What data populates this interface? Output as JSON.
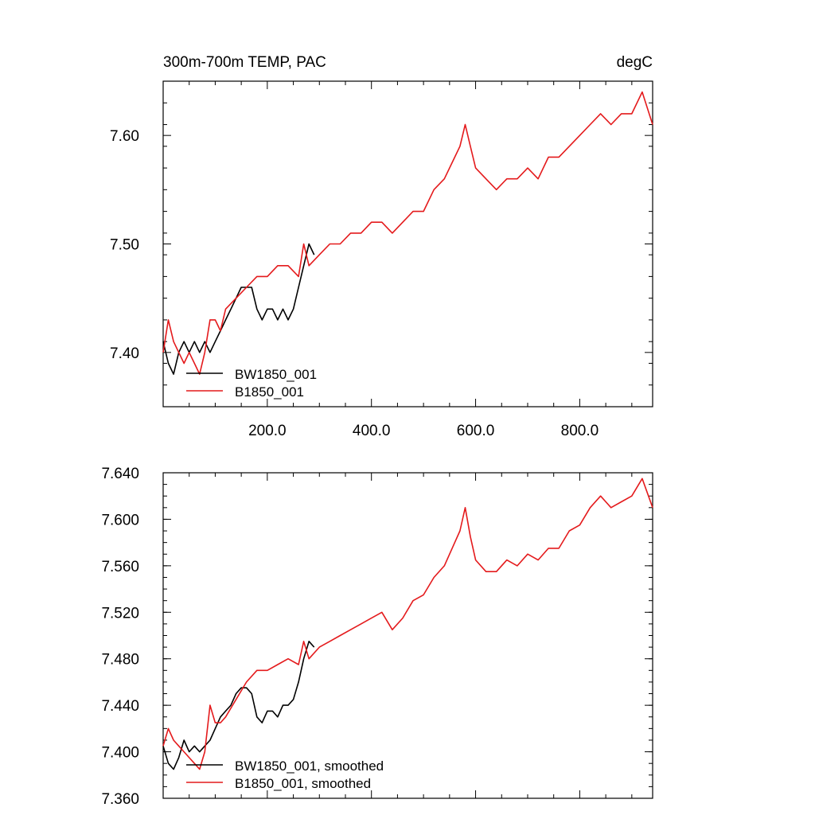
{
  "chart_data": [
    {
      "type": "line",
      "title": "300m-700m TEMP, PAC",
      "units": "degC",
      "xlim": [
        0,
        940
      ],
      "ylim": [
        7.35,
        7.65
      ],
      "x_tick_labels": [
        "200.0",
        "400.0",
        "600.0",
        "800.0"
      ],
      "x_tick_values": [
        200,
        400,
        600,
        800
      ],
      "y_tick_labels": [
        "7.40",
        "7.50",
        "7.60"
      ],
      "y_tick_values": [
        7.4,
        7.5,
        7.6
      ],
      "legend_position": "bottom-left",
      "series": [
        {
          "name": "BW1850_001",
          "color": "#000000",
          "x": [
            0,
            10,
            20,
            30,
            40,
            50,
            60,
            70,
            80,
            90,
            100,
            110,
            120,
            130,
            140,
            150,
            160,
            170,
            180,
            190,
            200,
            210,
            220,
            230,
            240,
            250,
            260,
            270,
            280,
            290
          ],
          "y": [
            7.41,
            7.39,
            7.38,
            7.4,
            7.41,
            7.4,
            7.41,
            7.4,
            7.41,
            7.4,
            7.41,
            7.42,
            7.43,
            7.44,
            7.45,
            7.46,
            7.46,
            7.46,
            7.44,
            7.43,
            7.44,
            7.44,
            7.43,
            7.44,
            7.43,
            7.44,
            7.46,
            7.48,
            7.5,
            7.49
          ]
        },
        {
          "name": "B1850_001",
          "color": "#e41a1c",
          "x": [
            0,
            10,
            20,
            30,
            40,
            50,
            60,
            70,
            80,
            90,
            100,
            110,
            120,
            140,
            160,
            180,
            200,
            220,
            240,
            260,
            270,
            280,
            300,
            320,
            340,
            360,
            380,
            400,
            420,
            440,
            460,
            480,
            500,
            520,
            540,
            560,
            570,
            580,
            590,
            600,
            620,
            640,
            660,
            680,
            700,
            720,
            740,
            760,
            780,
            800,
            820,
            840,
            860,
            880,
            900,
            920,
            940
          ],
          "y": [
            7.4,
            7.43,
            7.41,
            7.4,
            7.39,
            7.4,
            7.39,
            7.38,
            7.4,
            7.43,
            7.43,
            7.42,
            7.44,
            7.45,
            7.46,
            7.47,
            7.47,
            7.48,
            7.48,
            7.47,
            7.5,
            7.48,
            7.49,
            7.5,
            7.5,
            7.51,
            7.51,
            7.52,
            7.52,
            7.51,
            7.52,
            7.53,
            7.53,
            7.55,
            7.56,
            7.58,
            7.59,
            7.61,
            7.59,
            7.57,
            7.56,
            7.55,
            7.56,
            7.56,
            7.57,
            7.56,
            7.58,
            7.58,
            7.59,
            7.6,
            7.61,
            7.62,
            7.61,
            7.62,
            7.62,
            7.64,
            7.61
          ]
        }
      ]
    },
    {
      "type": "line",
      "xlim": [
        0,
        940
      ],
      "ylim": [
        7.36,
        7.64
      ],
      "x_tick_values": [
        200,
        400,
        600,
        800
      ],
      "y_tick_labels": [
        "7.360",
        "7.400",
        "7.440",
        "7.480",
        "7.520",
        "7.560",
        "7.600",
        "7.640"
      ],
      "y_tick_values": [
        7.36,
        7.4,
        7.44,
        7.48,
        7.52,
        7.56,
        7.6,
        7.64
      ],
      "legend_position": "bottom-left",
      "series": [
        {
          "name": "BW1850_001, smoothed",
          "color": "#000000",
          "x": [
            0,
            10,
            20,
            30,
            40,
            50,
            60,
            70,
            80,
            90,
            100,
            110,
            120,
            130,
            140,
            150,
            160,
            170,
            180,
            190,
            200,
            210,
            220,
            230,
            240,
            250,
            260,
            270,
            280,
            290
          ],
          "y": [
            7.405,
            7.39,
            7.385,
            7.395,
            7.41,
            7.4,
            7.405,
            7.4,
            7.405,
            7.41,
            7.42,
            7.43,
            7.435,
            7.44,
            7.45,
            7.455,
            7.455,
            7.45,
            7.43,
            7.425,
            7.435,
            7.435,
            7.43,
            7.44,
            7.44,
            7.445,
            7.46,
            7.48,
            7.495,
            7.49
          ]
        },
        {
          "name": "B1850_001, smoothed",
          "color": "#e41a1c",
          "x": [
            0,
            10,
            20,
            30,
            40,
            50,
            60,
            70,
            80,
            90,
            100,
            110,
            120,
            140,
            160,
            180,
            200,
            220,
            240,
            260,
            270,
            280,
            300,
            320,
            340,
            360,
            380,
            400,
            420,
            440,
            460,
            480,
            500,
            520,
            540,
            560,
            570,
            580,
            590,
            600,
            620,
            640,
            660,
            680,
            700,
            720,
            740,
            760,
            780,
            800,
            820,
            840,
            860,
            880,
            900,
            920,
            940
          ],
          "y": [
            7.405,
            7.42,
            7.41,
            7.405,
            7.4,
            7.395,
            7.39,
            7.385,
            7.4,
            7.44,
            7.425,
            7.425,
            7.43,
            7.445,
            7.46,
            7.47,
            7.47,
            7.475,
            7.48,
            7.475,
            7.495,
            7.48,
            7.49,
            7.495,
            7.5,
            7.505,
            7.51,
            7.515,
            7.52,
            7.505,
            7.515,
            7.53,
            7.535,
            7.55,
            7.56,
            7.58,
            7.59,
            7.61,
            7.585,
            7.565,
            7.555,
            7.555,
            7.565,
            7.56,
            7.57,
            7.565,
            7.575,
            7.575,
            7.59,
            7.595,
            7.61,
            7.62,
            7.61,
            7.615,
            7.62,
            7.635,
            7.61
          ]
        }
      ]
    }
  ]
}
